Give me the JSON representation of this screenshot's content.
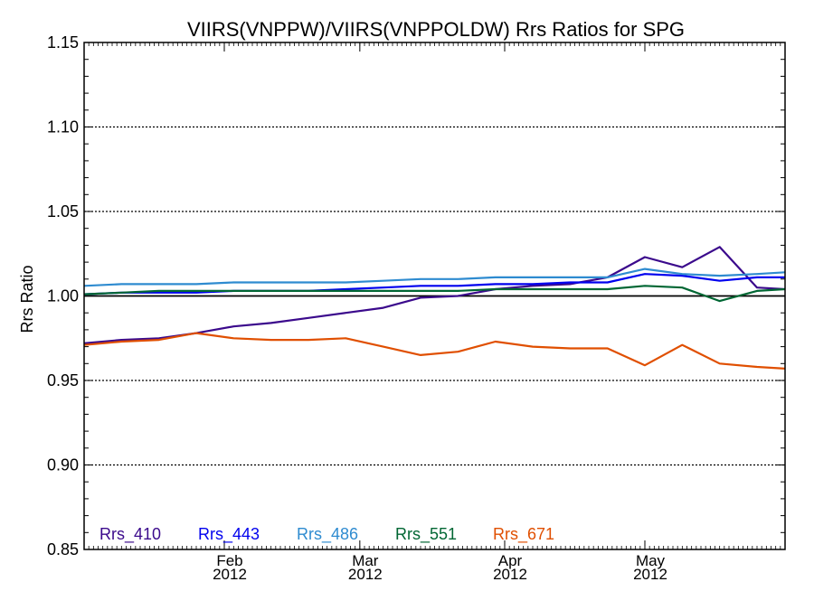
{
  "chart_data": {
    "type": "line",
    "title": "VIIRS(VNPPW)/VIIRS(VNPPOLDW)  Rrs Ratios for SPG",
    "xlabel": "",
    "ylabel": "Rrs Ratio",
    "ylim": [
      0.85,
      1.15
    ],
    "xlim": [
      "2012-01-02",
      "2012-05-31"
    ],
    "yticks": [
      "0.85",
      "0.90",
      "0.95",
      "1.00",
      "1.05",
      "1.10",
      "1.15"
    ],
    "xticks": [
      {
        "date": "2012-02-01",
        "month": "Feb",
        "year": "2012"
      },
      {
        "date": "2012-03-01",
        "month": "Mar",
        "year": "2012"
      },
      {
        "date": "2012-04-01",
        "month": "Apr",
        "year": "2012"
      },
      {
        "date": "2012-05-01",
        "month": "May",
        "year": "2012"
      }
    ],
    "grid": "horizontal dotted",
    "reference_line": 1.0,
    "legend_position": "bottom-left",
    "x": [
      "2012-01-02",
      "2012-01-10",
      "2012-01-18",
      "2012-01-26",
      "2012-02-03",
      "2012-02-11",
      "2012-02-19",
      "2012-02-27",
      "2012-03-06",
      "2012-03-14",
      "2012-03-22",
      "2012-03-30",
      "2012-04-07",
      "2012-04-15",
      "2012-04-23",
      "2012-05-01",
      "2012-05-09",
      "2012-05-17",
      "2012-05-25",
      "2012-05-31"
    ],
    "series": [
      {
        "name": "Rrs_410",
        "color": "#3b0a8c",
        "values": [
          0.972,
          0.974,
          0.975,
          0.978,
          0.982,
          0.984,
          0.987,
          0.99,
          0.993,
          0.999,
          1.0,
          1.004,
          1.006,
          1.007,
          1.011,
          1.023,
          1.017,
          1.029,
          1.005,
          1.004
        ]
      },
      {
        "name": "Rrs_443",
        "color": "#0000ee",
        "values": [
          1.001,
          1.002,
          1.002,
          1.002,
          1.003,
          1.003,
          1.003,
          1.004,
          1.005,
          1.006,
          1.006,
          1.007,
          1.007,
          1.008,
          1.008,
          1.013,
          1.012,
          1.009,
          1.011,
          1.011
        ]
      },
      {
        "name": "Rrs_486",
        "color": "#2e8bd0",
        "values": [
          1.006,
          1.007,
          1.007,
          1.007,
          1.008,
          1.008,
          1.008,
          1.008,
          1.009,
          1.01,
          1.01,
          1.011,
          1.011,
          1.011,
          1.011,
          1.016,
          1.013,
          1.012,
          1.013,
          1.014
        ]
      },
      {
        "name": "Rrs_551",
        "color": "#006633",
        "values": [
          1.001,
          1.002,
          1.003,
          1.003,
          1.003,
          1.003,
          1.003,
          1.003,
          1.003,
          1.003,
          1.003,
          1.004,
          1.004,
          1.004,
          1.004,
          1.006,
          1.005,
          0.997,
          1.003,
          1.004
        ]
      },
      {
        "name": "Rrs_671",
        "color": "#e04f00",
        "values": [
          0.971,
          0.973,
          0.974,
          0.978,
          0.975,
          0.974,
          0.974,
          0.975,
          0.97,
          0.965,
          0.967,
          0.973,
          0.97,
          0.969,
          0.969,
          0.959,
          0.971,
          0.96,
          0.958,
          0.957
        ]
      }
    ]
  }
}
